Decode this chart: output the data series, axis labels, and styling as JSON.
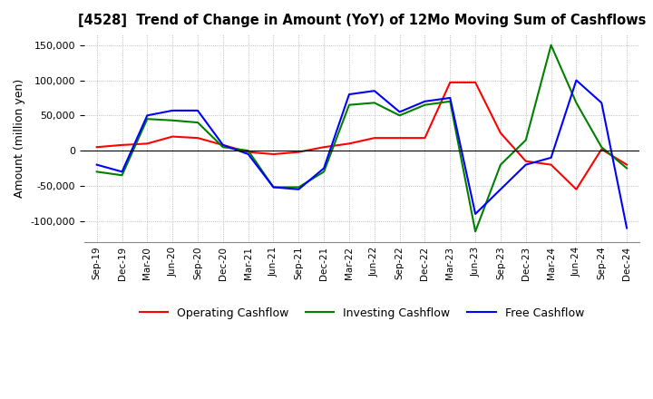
{
  "title": "[4528]  Trend of Change in Amount (YoY) of 12Mo Moving Sum of Cashflows",
  "ylabel": "Amount (million yen)",
  "ylim": [
    -130000,
    165000
  ],
  "yticks": [
    -100000,
    -50000,
    0,
    50000,
    100000,
    150000
  ],
  "x_labels": [
    "Sep-19",
    "Dec-19",
    "Mar-20",
    "Jun-20",
    "Sep-20",
    "Dec-20",
    "Mar-21",
    "Jun-21",
    "Sep-21",
    "Dec-21",
    "Mar-22",
    "Jun-22",
    "Sep-22",
    "Dec-22",
    "Mar-23",
    "Jun-23",
    "Sep-23",
    "Dec-23",
    "Mar-24",
    "Jun-24",
    "Sep-24",
    "Dec-24"
  ],
  "operating": [
    5000,
    8000,
    10000,
    20000,
    18000,
    8000,
    -2000,
    -5000,
    -2000,
    5000,
    10000,
    18000,
    18000,
    18000,
    97000,
    97000,
    25000,
    -15000,
    -20000,
    -55000,
    2000,
    -20000
  ],
  "investing": [
    -30000,
    -35000,
    45000,
    43000,
    40000,
    5000,
    0,
    -52000,
    -52000,
    -30000,
    65000,
    68000,
    50000,
    65000,
    70000,
    -115000,
    -20000,
    15000,
    150000,
    68000,
    5000,
    -25000
  ],
  "free": [
    -20000,
    -30000,
    50000,
    57000,
    57000,
    8000,
    -5000,
    -52000,
    -55000,
    -25000,
    80000,
    85000,
    55000,
    70000,
    75000,
    -90000,
    -55000,
    -20000,
    -10000,
    100000,
    68000,
    -110000
  ],
  "operating_color": "#ff0000",
  "investing_color": "#008000",
  "free_color": "#0000ff",
  "bg_color": "#ffffff",
  "grid_color": "#aaaaaa"
}
